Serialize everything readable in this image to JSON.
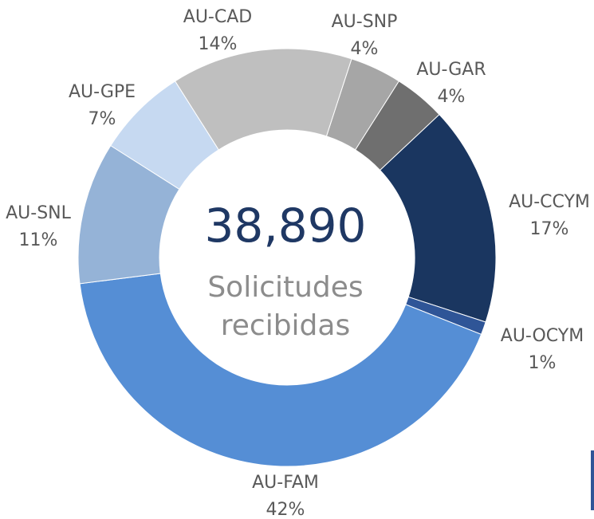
{
  "chart_data": {
    "type": "donut",
    "categories": [
      "AU-SNP",
      "AU-GAR",
      "AU-CCYM",
      "AU-OCYM",
      "AU-FAM",
      "AU-SNL",
      "AU-GPE",
      "AU-CAD"
    ],
    "values": [
      4,
      4,
      17,
      1,
      42,
      11,
      7,
      14
    ],
    "value_labels": [
      "4%",
      "4%",
      "17%",
      "1%",
      "42%",
      "11%",
      "7%",
      "14%"
    ],
    "colors": [
      "#a6a6a6",
      "#6f6f6f",
      "#1a3660",
      "#2f5597",
      "#558ed5",
      "#95b3d7",
      "#c6d9f1",
      "#bfbfbf"
    ],
    "center_value": 38890,
    "center_value_label": "38,890",
    "center_text": [
      "Solicitudes",
      "recibidas"
    ]
  }
}
